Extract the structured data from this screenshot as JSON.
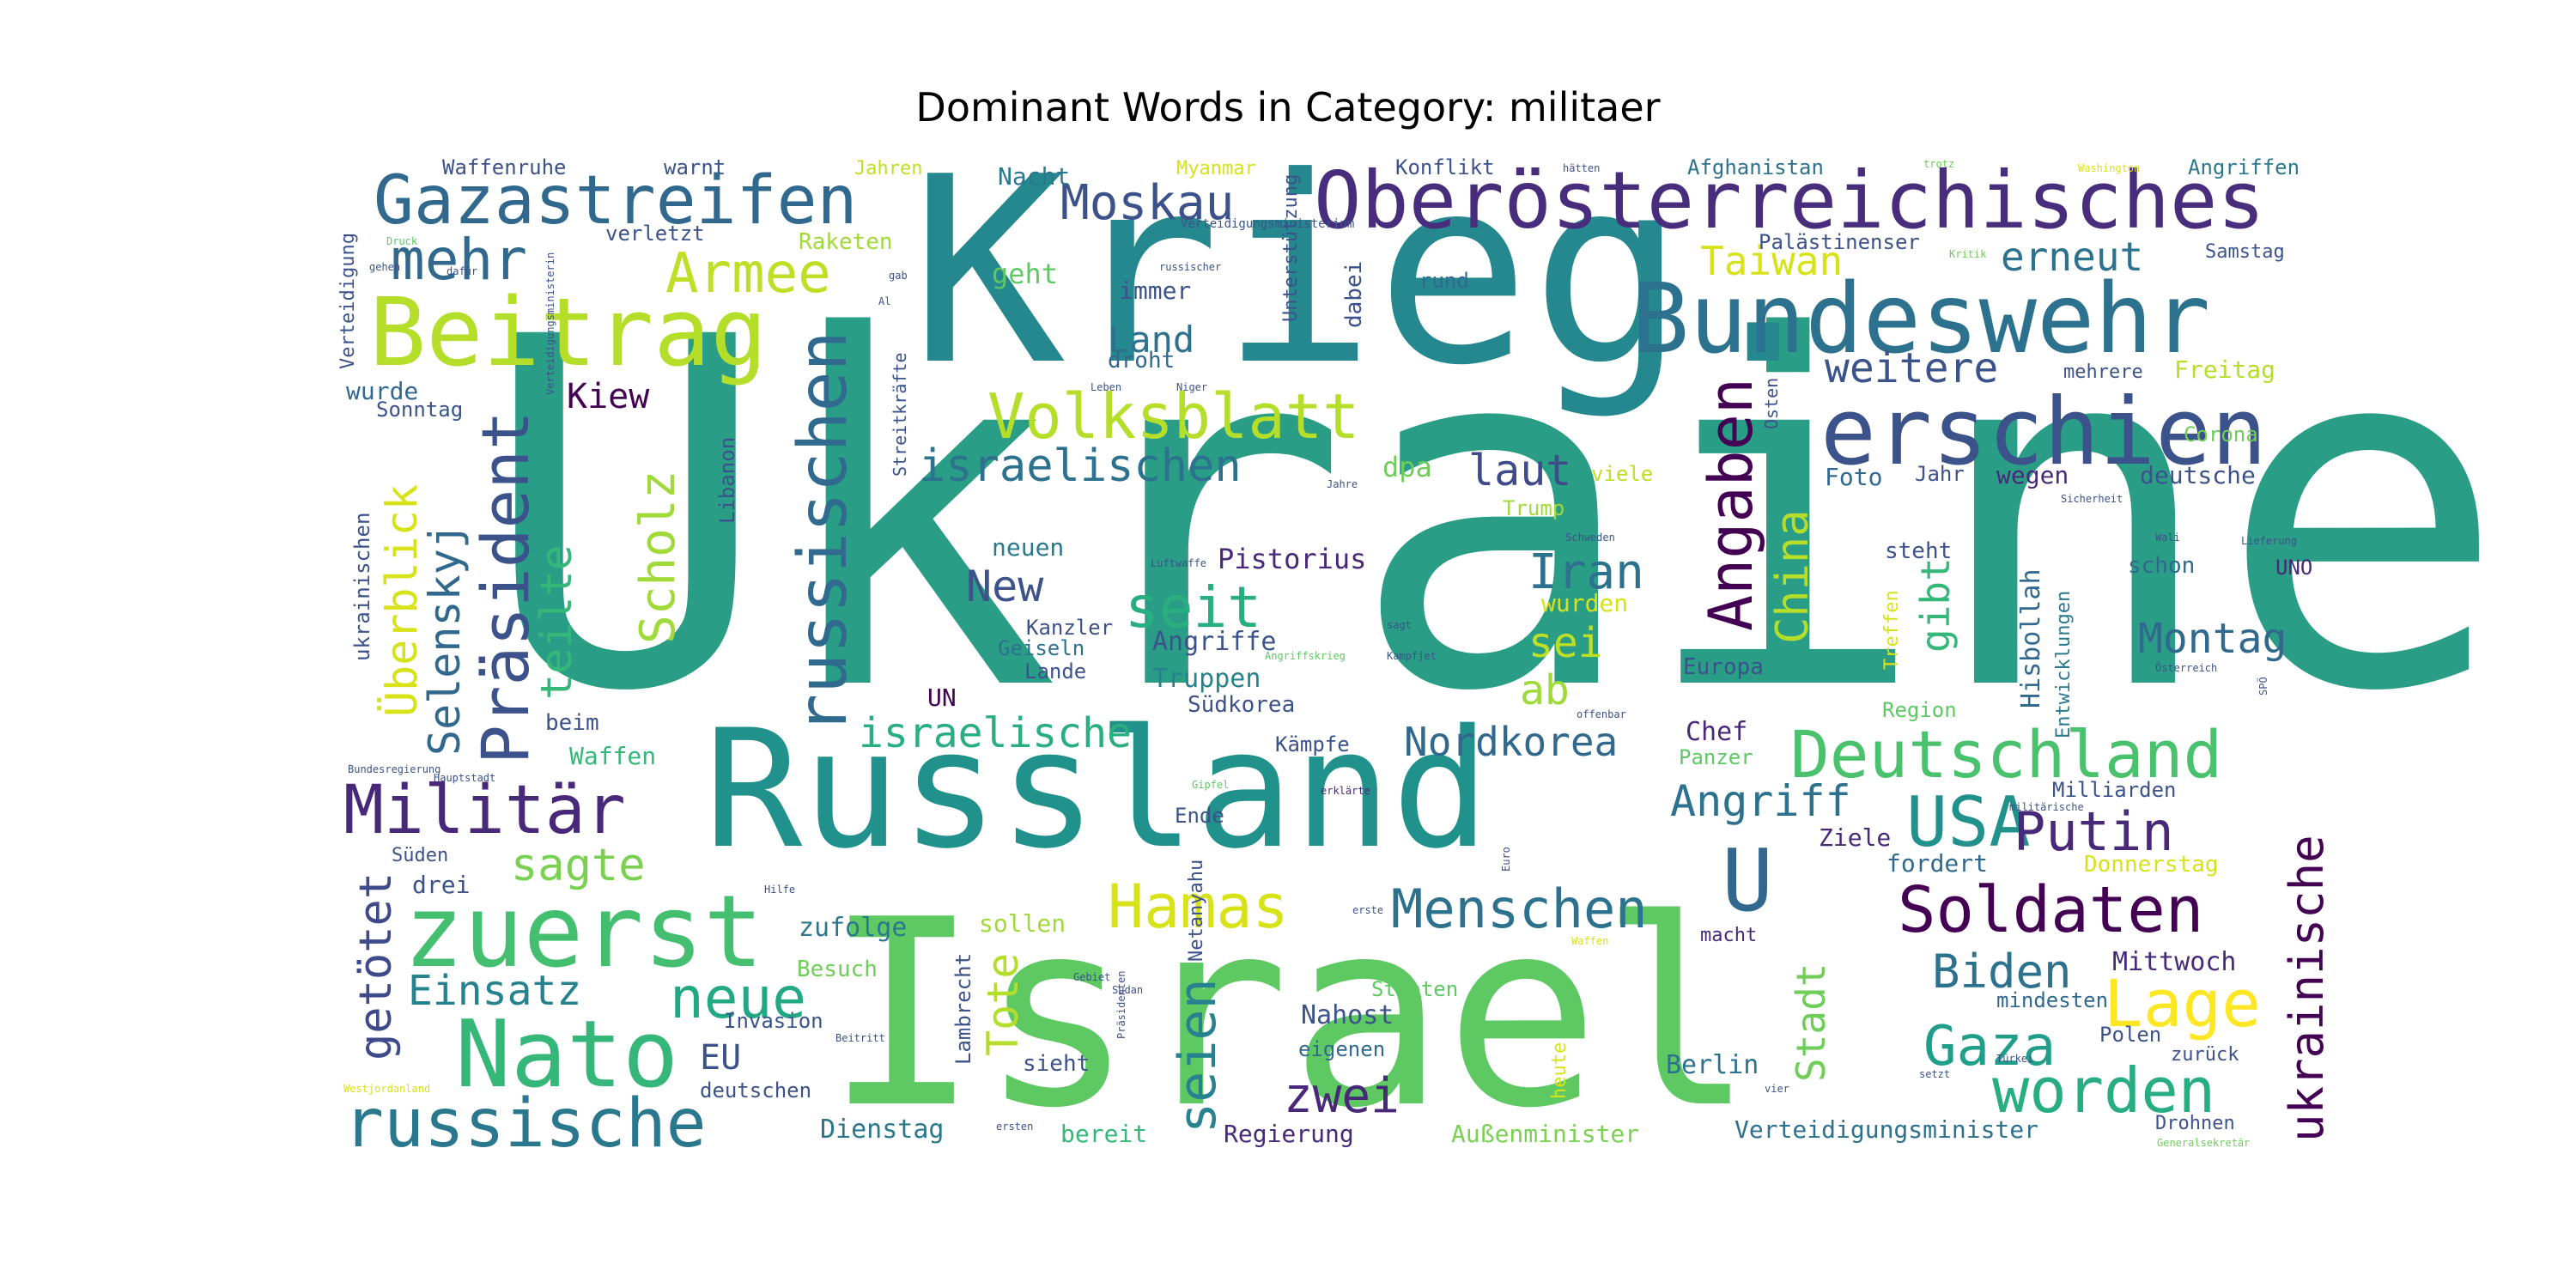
{
  "title": "Dominant Words in Category: militaer",
  "words": [
    {
      "text": "Ukraine",
      "weight": 100,
      "color": "#2a9d86"
    },
    {
      "text": "Krieg.",
      "weight": 62,
      "color": "#25888e"
    },
    {
      "text": "Israel",
      "weight": 58,
      "color": "#5ec962"
    },
    {
      "text": "Russland",
      "weight": 40,
      "color": "#21918c"
    },
    {
      "text": "Oberösterreichisches",
      "weight": 18,
      "color": "#472d7b"
    },
    {
      "text": "Bundeswehr",
      "weight": 20,
      "color": "#2c728e"
    },
    {
      "text": "erschien",
      "weight": 19,
      "color": "#3b528b"
    },
    {
      "text": "Beitrag",
      "weight": 18,
      "color": "#b5de2b"
    },
    {
      "text": "Gazastreifen",
      "weight": 14,
      "color": "#31688e"
    },
    {
      "text": "Deutschland",
      "weight": 14,
      "color": "#4ac16d"
    },
    {
      "text": "zuerst",
      "weight": 16,
      "color": "#44bf70"
    },
    {
      "text": "Nato",
      "weight": 17,
      "color": "#35b779"
    },
    {
      "text": "Volksblatt",
      "weight": 13,
      "color": "#b5de2b"
    },
    {
      "text": "russische",
      "weight": 13,
      "color": "#2a788e"
    },
    {
      "text": "Militär",
      "weight": 12,
      "color": "#482878"
    },
    {
      "text": "Präsident",
      "weight": 12,
      "color": "#3b528b"
    },
    {
      "text": "russischen",
      "weight": 12,
      "color": "#306a8e"
    },
    {
      "text": "Angaben",
      "weight": 11,
      "color": "#440154"
    },
    {
      "text": "Soldaten",
      "weight": 11,
      "color": "#440154"
    },
    {
      "text": "Lage",
      "weight": 11,
      "color": "#fde725"
    },
    {
      "text": "USA",
      "weight": 11,
      "color": "#21918c"
    },
    {
      "text": "worden",
      "weight": 11,
      "color": "#27ad81"
    },
    {
      "text": "U",
      "weight": 11,
      "color": "#31688e"
    },
    {
      "text": "Hamas",
      "weight": 10,
      "color": "#d8e219"
    },
    {
      "text": "Menschen",
      "weight": 10,
      "color": "#2c728e"
    },
    {
      "text": "Putin",
      "weight": 10,
      "color": "#482878"
    },
    {
      "text": "Armee",
      "weight": 10,
      "color": "#bddf26"
    },
    {
      "text": "mehr",
      "weight": 10,
      "color": "#31688e"
    },
    {
      "text": "Gaza",
      "weight": 10,
      "color": "#1f9e89"
    },
    {
      "text": "seit",
      "weight": 10,
      "color": "#29af7f"
    },
    {
      "text": "Moskau",
      "weight": 9,
      "color": "#3b528b"
    },
    {
      "text": "neue",
      "weight": 9,
      "color": "#22a884"
    },
    {
      "text": "seien",
      "weight": 9,
      "color": "#26828e"
    },
    {
      "text": "ukrainische",
      "weight": 9,
      "color": "#440154"
    },
    {
      "text": "Scholz",
      "weight": 9,
      "color": "#a0da39"
    },
    {
      "text": "Iran",
      "weight": 8,
      "color": "#2c728e"
    },
    {
      "text": "zwei",
      "weight": 8,
      "color": "#482878"
    },
    {
      "text": "Biden",
      "weight": 8,
      "color": "#2c728e"
    },
    {
      "text": "China",
      "weight": 8,
      "color": "#b5de2b"
    },
    {
      "text": "Montag",
      "weight": 8,
      "color": "#31688e"
    },
    {
      "text": "Überblick",
      "weight": 8,
      "color": "#d8e219"
    },
    {
      "text": "sagte",
      "weight": 8,
      "color": "#7ad151"
    },
    {
      "text": "getötet",
      "weight": 8,
      "color": "#3e4a89"
    },
    {
      "text": "Einsatz",
      "weight": 8,
      "color": "#25838e"
    },
    {
      "text": "Selenskyj",
      "weight": 8,
      "color": "#31688e"
    },
    {
      "text": "teilte",
      "weight": 8,
      "color": "#35b779"
    },
    {
      "text": "israelischen",
      "weight": 7,
      "color": "#2c728e"
    },
    {
      "text": "israelische",
      "weight": 7,
      "color": "#29af7f"
    },
    {
      "text": "Nordkorea",
      "weight": 7,
      "color": "#31688e"
    },
    {
      "text": "Angriff",
      "weight": 7,
      "color": "#2c728e"
    },
    {
      "text": "gibt",
      "weight": 7,
      "color": "#35b779"
    },
    {
      "text": "weitere",
      "weight": 7,
      "color": "#3b528b"
    },
    {
      "text": "erneut",
      "weight": 7,
      "color": "#2c728e"
    },
    {
      "text": "Taiwan",
      "weight": 7,
      "color": "#d8e219"
    },
    {
      "text": "laut",
      "weight": 7,
      "color": "#3e4a89"
    },
    {
      "text": "sei",
      "weight": 7,
      "color": "#bddf26"
    },
    {
      "text": "ab",
      "weight": 7,
      "color": "#a0da39"
    },
    {
      "text": "Kiew",
      "weight": 6,
      "color": "#440154"
    },
    {
      "text": "Land",
      "weight": 6,
      "color": "#2c728e"
    },
    {
      "text": "New",
      "weight": 6,
      "color": "#3b528b"
    },
    {
      "text": "Tote",
      "weight": 6,
      "color": "#b5de2b"
    },
    {
      "text": "Stadt",
      "weight": 6,
      "color": "#6ece58"
    },
    {
      "text": "EU",
      "weight": 6,
      "color": "#3b528b"
    },
    {
      "text": "dpa",
      "weight": 5,
      "color": "#6ece58"
    },
    {
      "text": "Pistorius",
      "weight": 5,
      "color": "#482878"
    },
    {
      "text": "Hisbollah",
      "weight": 5,
      "color": "#31688e"
    },
    {
      "text": "Mittwoch",
      "weight": 5,
      "color": "#482878"
    },
    {
      "text": "Nahost",
      "weight": 5,
      "color": "#3b528b"
    },
    {
      "text": "zufolge",
      "weight": 5,
      "color": "#2a788e"
    },
    {
      "text": "Foto",
      "weight": 4,
      "color": "#31688e"
    },
    {
      "text": "Berlin",
      "weight": 5,
      "color": "#2c728e"
    },
    {
      "text": "Regierung",
      "weight": 4,
      "color": "#482878"
    },
    {
      "text": "Außenminister",
      "weight": 4,
      "color": "#7ad151"
    },
    {
      "text": "Verteidigungsminister",
      "weight": 4,
      "color": "#2c728e"
    },
    {
      "text": "Dienstag",
      "weight": 4,
      "color": "#2a788e"
    },
    {
      "text": "bereit",
      "weight": 4,
      "color": "#35b779"
    },
    {
      "text": "Waffenruhe",
      "weight": 4,
      "color": "#3b528b"
    },
    {
      "text": "warnt",
      "weight": 4,
      "color": "#3b528b"
    },
    {
      "text": "Raketen",
      "weight": 4,
      "color": "#a0da39"
    },
    {
      "text": "Nacht",
      "weight": 4,
      "color": "#2a788e"
    },
    {
      "text": "Konflikt",
      "weight": 4,
      "color": "#3b528b"
    },
    {
      "text": "Afghanistan",
      "weight": 4,
      "color": "#2c728e"
    },
    {
      "text": "Angriffen",
      "weight": 4,
      "color": "#2a788e"
    },
    {
      "text": "Samstag",
      "weight": 4,
      "color": "#3b528b"
    },
    {
      "text": "Palästinenser",
      "weight": 4,
      "color": "#3b528b"
    },
    {
      "text": "verletzt",
      "weight": 4,
      "color": "#3b528b"
    },
    {
      "text": "geht",
      "weight": 5,
      "color": "#5ec962"
    },
    {
      "text": "immer",
      "weight": 4,
      "color": "#3b528b"
    },
    {
      "text": "droht",
      "weight": 4,
      "color": "#31688e"
    },
    {
      "text": "dabei",
      "weight": 4,
      "color": "#3b528b"
    },
    {
      "text": "rund",
      "weight": 4,
      "color": "#31688e"
    },
    {
      "text": "wurde",
      "weight": 4,
      "color": "#31688e"
    },
    {
      "text": "Sonntag",
      "weight": 4,
      "color": "#3b528b"
    },
    {
      "text": "Freitag",
      "weight": 4,
      "color": "#b5de2b"
    },
    {
      "text": "Corona",
      "weight": 4,
      "color": "#6ece58"
    },
    {
      "text": "mehrere",
      "weight": 4,
      "color": "#3b528b"
    },
    {
      "text": "Osten",
      "weight": 3,
      "color": "#3b528b"
    },
    {
      "text": "Jahr",
      "weight": 4,
      "color": "#3b528b"
    },
    {
      "text": "wegen",
      "weight": 4,
      "color": "#482878"
    },
    {
      "text": "deutsche",
      "weight": 4,
      "color": "#3b528b"
    },
    {
      "text": "Trump",
      "weight": 4,
      "color": "#a0da39"
    },
    {
      "text": "viele",
      "weight": 4,
      "color": "#bddf26"
    },
    {
      "text": "Libanon",
      "weight": 4,
      "color": "#3b528b"
    },
    {
      "text": "neuen",
      "weight": 4,
      "color": "#2a788e"
    },
    {
      "text": "steht",
      "weight": 4,
      "color": "#3b528b"
    },
    {
      "text": "schon",
      "weight": 4,
      "color": "#31688e"
    },
    {
      "text": "UNO",
      "weight": 4,
      "color": "#482878"
    },
    {
      "text": "wurden",
      "weight": 4,
      "color": "#d8e219"
    },
    {
      "text": "Kanzler",
      "weight": 4,
      "color": "#3b528b"
    },
    {
      "text": "Angriffe",
      "weight": 4,
      "color": "#3b528b"
    },
    {
      "text": "Geiseln",
      "weight": 4,
      "color": "#2c728e"
    },
    {
      "text": "Truppen",
      "weight": 4,
      "color": "#25838e"
    },
    {
      "text": "Lande",
      "weight": 4,
      "color": "#3b528b"
    },
    {
      "text": "Südkorea",
      "weight": 4,
      "color": "#3b528b"
    },
    {
      "text": "Europa",
      "weight": 4,
      "color": "#3b528b"
    },
    {
      "text": "Region",
      "weight": 4,
      "color": "#5ec962"
    },
    {
      "text": "Treffen",
      "weight": 3,
      "color": "#d8e219"
    },
    {
      "text": "Entwicklungen",
      "weight": 3,
      "color": "#2a788e"
    },
    {
      "text": "Chef",
      "weight": 4,
      "color": "#482878"
    },
    {
      "text": "Panzer",
      "weight": 4,
      "color": "#5ec962"
    },
    {
      "text": "Kämpfe",
      "weight": 4,
      "color": "#3b528b"
    },
    {
      "text": "UN",
      "weight": 4,
      "color": "#440154"
    },
    {
      "text": "beim",
      "weight": 4,
      "color": "#3b528b"
    },
    {
      "text": "Waffen",
      "weight": 4,
      "color": "#35b779"
    },
    {
      "text": "ukrainischen",
      "weight": 4,
      "color": "#3b528b"
    },
    {
      "text": "drei",
      "weight": 4,
      "color": "#3b528b"
    },
    {
      "text": "Süden",
      "weight": 3,
      "color": "#3b528b"
    },
    {
      "text": "Milliarden",
      "weight": 4,
      "color": "#3b528b"
    },
    {
      "text": "Ziele",
      "weight": 4,
      "color": "#482878"
    },
    {
      "text": "fordert",
      "weight": 4,
      "color": "#31688e"
    },
    {
      "text": "Donnerstag",
      "weight": 4,
      "color": "#d8e219"
    },
    {
      "text": "Ende",
      "weight": 4,
      "color": "#3b528b"
    },
    {
      "text": "macht",
      "weight": 3,
      "color": "#482878"
    },
    {
      "text": "sollen",
      "weight": 4,
      "color": "#a0da39"
    },
    {
      "text": "Besuch",
      "weight": 4,
      "color": "#6ece58"
    },
    {
      "text": "Invasion",
      "weight": 4,
      "color": "#3b528b"
    },
    {
      "text": "Staaten",
      "weight": 4,
      "color": "#5ec962"
    },
    {
      "text": "eigenen",
      "weight": 4,
      "color": "#31688e"
    },
    {
      "text": "sieht",
      "weight": 4,
      "color": "#3b528b"
    },
    {
      "text": "deutschen",
      "weight": 4,
      "color": "#3b528b"
    },
    {
      "text": "Lambrecht",
      "weight": 3,
      "color": "#3b528b"
    },
    {
      "text": "Netanyahu",
      "weight": 3,
      "color": "#3b528b"
    },
    {
      "text": "mindesten",
      "weight": 4,
      "color": "#31688e"
    },
    {
      "text": "Polen",
      "weight": 4,
      "color": "#3b528b"
    },
    {
      "text": "zurück",
      "weight": 3,
      "color": "#3b528b"
    },
    {
      "text": "Drohnen",
      "weight": 3,
      "color": "#3b528b"
    },
    {
      "text": "heute",
      "weight": 3,
      "color": "#d8e219"
    },
    {
      "text": "Jahren",
      "weight": 3,
      "color": "#bddf26"
    },
    {
      "text": "Myanmar",
      "weight": 3,
      "color": "#d8e219"
    },
    {
      "text": "Unterstützung",
      "weight": 3,
      "color": "#3b528b"
    },
    {
      "text": "Streitkräfte",
      "weight": 3,
      "color": "#3b528b"
    },
    {
      "text": "Verteidigung",
      "weight": 3,
      "color": "#3b528b"
    },
    {
      "text": "Verteidigungsministerium",
      "weight": 2,
      "color": "#3b528b"
    },
    {
      "text": "Verteidigungsministerin",
      "weight": 2,
      "color": "#3b528b"
    },
    {
      "text": "Druck",
      "weight": 2,
      "color": "#5ec962"
    },
    {
      "text": "gehen",
      "weight": 2,
      "color": "#3b528b"
    },
    {
      "text": "dafür",
      "weight": 2,
      "color": "#3b528b"
    },
    {
      "text": "gab",
      "weight": 2,
      "color": "#3b528b"
    },
    {
      "text": "Al",
      "weight": 2,
      "color": "#3b528b"
    },
    {
      "text": "russischer",
      "weight": 2,
      "color": "#3b528b"
    },
    {
      "text": "Leben",
      "weight": 2,
      "color": "#3b528b"
    },
    {
      "text": "Niger",
      "weight": 2,
      "color": "#3b528b"
    },
    {
      "text": "Jahre",
      "weight": 2,
      "color": "#3b528b"
    },
    {
      "text": "hätten",
      "weight": 2,
      "color": "#3b528b"
    },
    {
      "text": "trotz",
      "weight": 2,
      "color": "#6ece58"
    },
    {
      "text": "Washington",
      "weight": 2,
      "color": "#d8e219"
    },
    {
      "text": "Kritik",
      "weight": 2,
      "color": "#6ece58"
    },
    {
      "text": "Sicherheit",
      "weight": 2,
      "color": "#3b528b"
    },
    {
      "text": "Lieferung",
      "weight": 2,
      "color": "#3b528b"
    },
    {
      "text": "Wali",
      "weight": 2,
      "color": "#3b528b"
    },
    {
      "text": "Österreich",
      "weight": 2,
      "color": "#3b528b"
    },
    {
      "text": "SPÖ",
      "weight": 2,
      "color": "#3b528b"
    },
    {
      "text": "Luftwaffe",
      "weight": 2,
      "color": "#3b528b"
    },
    {
      "text": "Schweden",
      "weight": 2,
      "color": "#3b528b"
    },
    {
      "text": "sagt",
      "weight": 2,
      "color": "#3b528b"
    },
    {
      "text": "Angriffskrieg",
      "weight": 2,
      "color": "#5ec962"
    },
    {
      "text": "Kampfjet",
      "weight": 2,
      "color": "#3b528b"
    },
    {
      "text": "offenbar",
      "weight": 2,
      "color": "#3b528b"
    },
    {
      "text": "Hauptstadt",
      "weight": 2,
      "color": "#3b528b"
    },
    {
      "text": "Bundesregierung",
      "weight": 2,
      "color": "#3b528b"
    },
    {
      "text": "Gipfel",
      "weight": 2,
      "color": "#5ec962"
    },
    {
      "text": "erklärte",
      "weight": 2,
      "color": "#482878"
    },
    {
      "text": "militärische",
      "weight": 2,
      "color": "#3b528b"
    },
    {
      "text": "Hilfe",
      "weight": 2,
      "color": "#3b528b"
    },
    {
      "text": "Euro",
      "weight": 2,
      "color": "#3b528b"
    },
    {
      "text": "erste",
      "weight": 2,
      "color": "#3b528b"
    },
    {
      "text": "Gebiet",
      "weight": 2,
      "color": "#3b528b"
    },
    {
      "text": "Sudan",
      "weight": 2,
      "color": "#3b528b"
    },
    {
      "text": "Präsidenten",
      "weight": 2,
      "color": "#3b528b"
    },
    {
      "text": "Waffen",
      "weight": 2,
      "color": "#d8e219"
    },
    {
      "text": "Beitritt",
      "weight": 2,
      "color": "#3b528b"
    },
    {
      "text": "Westjordanland",
      "weight": 2,
      "color": "#d8e219"
    },
    {
      "text": "ersten",
      "weight": 2,
      "color": "#3b528b"
    },
    {
      "text": "Türkei",
      "weight": 2,
      "color": "#3b528b"
    },
    {
      "text": "vier",
      "weight": 2,
      "color": "#3b528b"
    },
    {
      "text": "setzt",
      "weight": 2,
      "color": "#3b528b"
    },
    {
      "text": "Generalsekretär",
      "weight": 2,
      "color": "#6ece58"
    }
  ]
}
